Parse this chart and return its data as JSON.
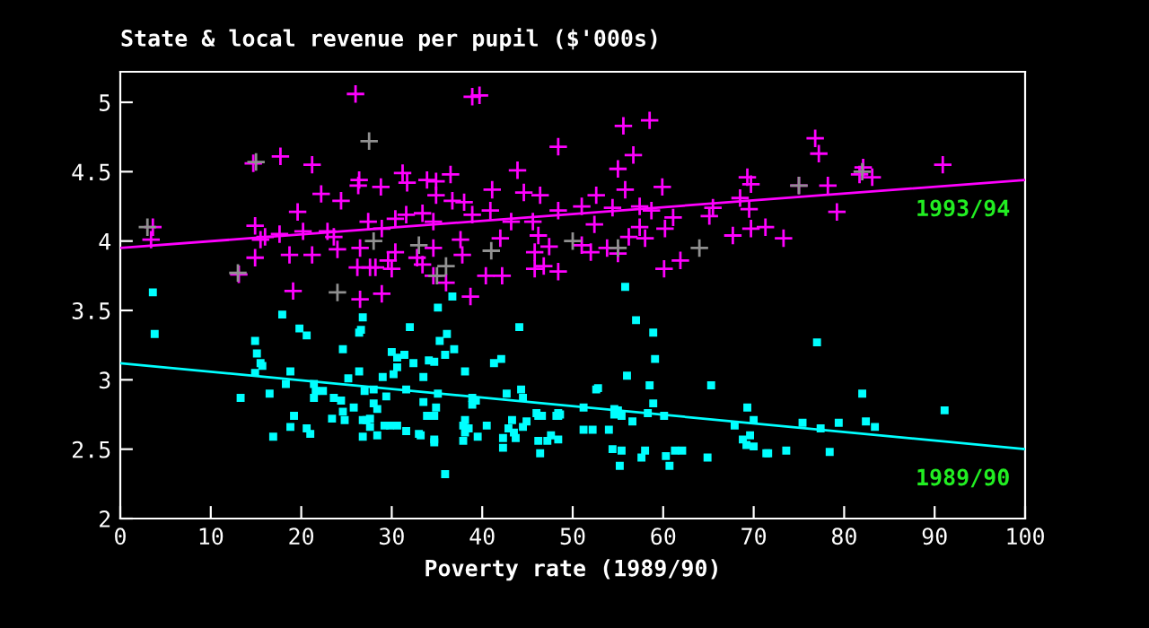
{
  "chart_data": {
    "type": "scatter",
    "title": "State & local revenue per pupil ($'000s)",
    "xlabel": "Poverty rate (1989/90)",
    "xlim": [
      0,
      100
    ],
    "xticks": [
      0,
      10,
      20,
      30,
      40,
      50,
      60,
      70,
      80,
      90,
      100
    ],
    "ylim": [
      2,
      5.22
    ],
    "yticks": [
      2,
      2.5,
      3,
      3.5,
      4,
      4.5,
      5
    ],
    "grid": false,
    "legend": false,
    "series": [
      {
        "marker": "cross",
        "color": "#ff00ff",
        "x": [
          26.0,
          38.9,
          39.7,
          14.7,
          17.7,
          21.2,
          48.4,
          22.2,
          24.4,
          26.4,
          26.3,
          28.8,
          31.2,
          31.7,
          33.9,
          34.9,
          36.5,
          34.9,
          36.7,
          38.0,
          41.1,
          43.9,
          44.6,
          46.4,
          19.6,
          14.9,
          3.6,
          3.4,
          15.5,
          14.9,
          13.1,
          18.7,
          21.2,
          19.1,
          26.5,
          28.9,
          24.0,
          23.6,
          26.2,
          27.6,
          28.2,
          30.0,
          29.6,
          30.4,
          30.4,
          31.6,
          33.4,
          34.6,
          32.8,
          34.6,
          33.4,
          34.6,
          36.0,
          37.6,
          37.8,
          40.4,
          42.2,
          38.7,
          42.0,
          43.2,
          45.6,
          46.2,
          45.8,
          47.4,
          46.8,
          45.8,
          48.4,
          48.4,
          40.9,
          38.9,
          28.9,
          27.4,
          22.9,
          20.2,
          17.6,
          16.0,
          26.5,
          55.6,
          58.5,
          56.7,
          55.0,
          55.8,
          59.9,
          52.6,
          51.0,
          54.4,
          57.4,
          58.7,
          61.1,
          65.1,
          65.5,
          52.4,
          57.4,
          60.2,
          56.2,
          58.0,
          51.0,
          52.0,
          53.8,
          55.0,
          60.1,
          61.9,
          67.7,
          69.7,
          71.3,
          73.3,
          68.5,
          69.3,
          69.7,
          69.5,
          75.0,
          76.8,
          77.2,
          78.2,
          79.2,
          82.1,
          81.7,
          83.1,
          90.9
        ],
        "values": [
          5.06,
          5.04,
          5.05,
          4.56,
          4.61,
          4.55,
          4.68,
          4.34,
          4.29,
          4.44,
          4.4,
          4.39,
          4.49,
          4.42,
          4.44,
          4.43,
          4.48,
          4.33,
          4.29,
          4.28,
          4.37,
          4.51,
          4.35,
          4.33,
          4.21,
          4.11,
          4.1,
          4.01,
          4.01,
          3.88,
          3.76,
          3.9,
          3.9,
          3.64,
          3.58,
          3.62,
          3.94,
          4.03,
          3.81,
          3.81,
          3.81,
          3.8,
          3.86,
          3.92,
          4.16,
          4.19,
          4.2,
          4.14,
          3.88,
          3.95,
          3.83,
          3.75,
          3.7,
          4.01,
          3.9,
          3.75,
          3.75,
          3.6,
          4.02,
          4.14,
          4.14,
          4.04,
          3.92,
          3.96,
          3.82,
          3.8,
          4.22,
          3.78,
          4.22,
          4.19,
          4.09,
          4.14,
          4.07,
          4.07,
          4.05,
          4.03,
          3.95,
          4.83,
          4.87,
          4.62,
          4.52,
          4.37,
          4.39,
          4.33,
          4.25,
          4.24,
          4.25,
          4.22,
          4.17,
          4.18,
          4.24,
          4.12,
          4.1,
          4.09,
          4.03,
          4.02,
          3.97,
          3.92,
          3.95,
          3.91,
          3.8,
          3.86,
          4.04,
          4.09,
          4.1,
          4.02,
          4.31,
          4.46,
          4.41,
          4.23,
          4.4,
          4.74,
          4.63,
          4.4,
          4.21,
          4.53,
          4.48,
          4.46,
          4.55
        ]
      },
      {
        "marker": "cross",
        "color": "#909090",
        "x": [
          15,
          27.5,
          3,
          13,
          24,
          35,
          36,
          41,
          50,
          55,
          64,
          75,
          82,
          33,
          28
        ],
        "values": [
          4.57,
          4.72,
          4.1,
          3.77,
          3.63,
          3.75,
          3.82,
          3.93,
          4.0,
          3.95,
          3.95,
          4.4,
          4.5,
          3.97,
          4.0
        ]
      },
      {
        "marker": "square",
        "color": "#00ffff",
        "x": [
          3.6,
          3.8,
          14.9,
          15.1,
          15.5,
          15.7,
          14.9,
          13.3,
          16.5,
          16.9,
          17.9,
          18.8,
          18.3,
          19.2,
          18.8,
          19.8,
          20.6,
          20.6,
          21.0,
          21.4,
          21.6,
          21.4,
          22.4,
          23.4,
          23.6,
          24.6,
          24.4,
          24.6,
          24.8,
          25.2,
          25.8,
          26.4,
          26.6,
          26.8,
          26.4,
          27.0,
          26.8,
          27.2,
          26.8,
          27.6,
          27.6,
          28.0,
          28.0,
          28.4,
          28.4,
          29.0,
          29.2,
          29.4,
          29.8,
          30.0,
          30.6,
          30.6,
          30.6,
          30.2,
          31.4,
          31.6,
          31.6,
          32.0,
          32.4,
          33.0,
          33.2,
          33.5,
          33.5,
          34.1,
          34.7,
          33.9,
          34.7,
          34.9,
          34.7,
          34.7,
          35.1,
          35.1,
          35.3,
          36.1,
          35.9,
          35.9,
          36.7,
          36.9,
          38.1,
          37.9,
          37.9,
          38.1,
          38.1,
          38.5,
          38.9,
          38.9,
          39.3,
          39.5,
          40.5,
          41.3,
          42.1,
          42.3,
          42.3,
          42.7,
          42.9,
          43.3,
          43.5,
          43.7,
          44.1,
          44.3,
          44.5,
          44.5,
          44.9,
          46.0,
          46.2,
          46.4,
          46.2,
          46.6,
          47.2,
          47.6,
          48.2,
          48.4,
          55.8,
          57.0,
          58.9,
          59.1,
          56.0,
          58.5,
          65.3,
          58.9,
          52.8,
          52.6,
          51.2,
          48.6,
          48.4,
          48.4,
          51.2,
          52.2,
          54.0,
          54.6,
          54.6,
          55.0,
          55.4,
          56.6,
          58.3,
          60.1,
          54.4,
          55.4,
          55.2,
          58.0,
          57.6,
          60.3,
          60.7,
          61.3,
          62.1,
          64.9,
          67.9,
          69.3,
          70.0,
          69.6,
          68.8,
          69.2,
          70.0,
          71.4,
          71.6,
          73.6,
          75.4,
          77.0,
          77.4,
          78.4,
          79.4,
          82.0,
          82.4,
          83.4,
          91.1
        ],
        "values": [
          3.63,
          3.33,
          3.28,
          3.19,
          3.12,
          3.1,
          3.05,
          2.87,
          2.9,
          2.59,
          3.47,
          3.06,
          2.97,
          2.74,
          2.66,
          3.37,
          3.32,
          2.65,
          2.61,
          2.97,
          2.92,
          2.87,
          2.92,
          2.72,
          2.87,
          3.22,
          2.85,
          2.77,
          2.71,
          3.01,
          2.8,
          3.34,
          3.36,
          3.45,
          3.06,
          2.92,
          2.71,
          2.71,
          2.59,
          2.66,
          2.72,
          2.93,
          2.83,
          2.79,
          2.6,
          3.02,
          2.67,
          2.88,
          2.67,
          3.2,
          3.16,
          3.09,
          2.67,
          3.04,
          3.18,
          2.63,
          2.93,
          3.38,
          3.12,
          2.61,
          2.6,
          3.02,
          2.84,
          3.14,
          3.13,
          2.74,
          2.74,
          2.8,
          2.57,
          2.55,
          2.9,
          3.52,
          3.28,
          3.33,
          3.18,
          2.32,
          3.6,
          3.22,
          3.06,
          2.67,
          2.56,
          2.62,
          2.71,
          2.65,
          2.87,
          2.82,
          2.85,
          2.59,
          2.67,
          3.12,
          3.15,
          2.58,
          2.51,
          2.9,
          2.65,
          2.71,
          2.62,
          2.58,
          3.38,
          2.93,
          2.87,
          2.66,
          2.7,
          2.76,
          2.74,
          2.47,
          2.56,
          2.74,
          2.56,
          2.6,
          2.74,
          2.76,
          3.67,
          3.43,
          3.34,
          3.15,
          3.03,
          2.96,
          2.96,
          2.83,
          2.94,
          2.93,
          2.8,
          2.75,
          2.74,
          2.57,
          2.64,
          2.64,
          2.64,
          2.79,
          2.75,
          2.78,
          2.74,
          2.7,
          2.76,
          2.74,
          2.5,
          2.49,
          2.38,
          2.49,
          2.44,
          2.45,
          2.38,
          2.49,
          2.49,
          2.44,
          2.67,
          2.8,
          2.71,
          2.6,
          2.57,
          2.53,
          2.52,
          2.47,
          2.47,
          2.49,
          2.69,
          3.27,
          2.65,
          2.48,
          2.69,
          2.9,
          2.7,
          2.66,
          2.78
        ]
      },
      {
        "type": "line",
        "name": "1993/94",
        "color": "#ff00ff",
        "x": [
          0,
          100
        ],
        "values": [
          3.95,
          4.44
        ]
      },
      {
        "type": "line",
        "name": "1989/90",
        "color": "#00ffff",
        "x": [
          0,
          100
        ],
        "values": [
          3.12,
          2.5
        ]
      }
    ]
  }
}
